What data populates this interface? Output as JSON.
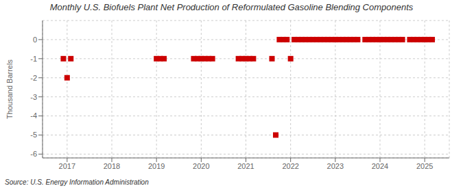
{
  "chart_data": {
    "type": "scatter",
    "title": "Monthly U.S. Biofuels Plant Net Production of Reformulated Gasoline Blending Components",
    "y_label": "Thousand Barrels",
    "annotations": [
      "Source: U.S. Energy Information Administration"
    ],
    "x": [
      2016.917,
      2017.0,
      2017.083,
      2019.0,
      2019.083,
      2019.167,
      2019.833,
      2019.917,
      2020.0,
      2020.083,
      2020.167,
      2020.25,
      2020.833,
      2020.917,
      2021.0,
      2021.083,
      2021.167,
      2021.583,
      2021.667,
      2021.75,
      2021.833,
      2021.917,
      2022.0,
      2022.083,
      2022.167,
      2022.25,
      2022.333,
      2022.417,
      2022.5,
      2022.583,
      2022.667,
      2022.75,
      2022.833,
      2022.917,
      2023.0,
      2023.083,
      2023.167,
      2023.25,
      2023.333,
      2023.417,
      2023.5,
      2023.667,
      2023.75,
      2023.833,
      2023.917,
      2024.0,
      2024.083,
      2024.167,
      2024.25,
      2024.333,
      2024.417,
      2024.5,
      2024.667,
      2024.75,
      2024.833,
      2024.917,
      2025.0,
      2025.083,
      2025.167
    ],
    "values": [
      -1,
      -2,
      -1,
      -1,
      -1,
      -1,
      -1,
      -1,
      -1,
      -1,
      -1,
      -1,
      -1,
      -1,
      -1,
      -1,
      -1,
      -1,
      -5,
      0,
      0,
      0,
      -1,
      0,
      0,
      0,
      0,
      0,
      0,
      0,
      0,
      0,
      0,
      0,
      0,
      0,
      0,
      0,
      0,
      0,
      0,
      0,
      0,
      0,
      0,
      0,
      0,
      0,
      0,
      0,
      0,
      0,
      0,
      0,
      0,
      0,
      0,
      0,
      0
    ],
    "color": "#cc0000",
    "marker": "square",
    "xlim": [
      2016.45,
      2025.55
    ],
    "xticks": [
      2017,
      2018,
      2019,
      2020,
      2021,
      2022,
      2023,
      2024,
      2025
    ],
    "ylim": [
      -6.2,
      1.0
    ],
    "yticks": [
      0,
      -1,
      -2,
      -3,
      -4,
      -5,
      -6
    ],
    "grid": true
  }
}
